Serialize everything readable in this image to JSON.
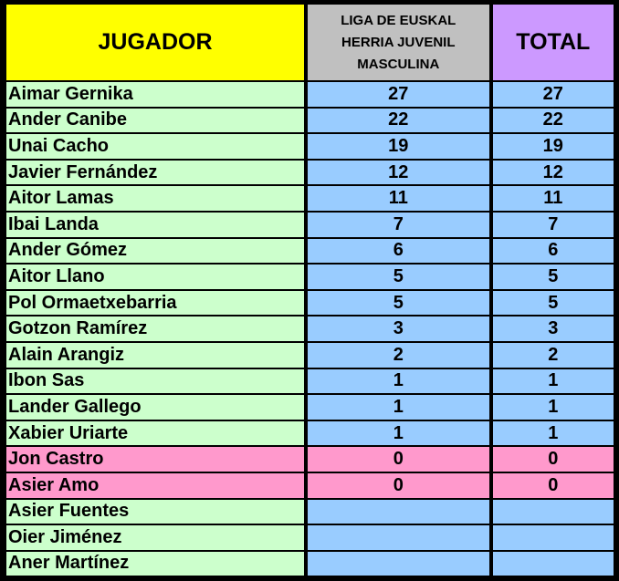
{
  "headers": {
    "player": "JUGADOR",
    "league_line1": "LIGA DE EUSKAL",
    "league_line2": "HERRIA JUVENIL",
    "league_line3": "MASCULINA",
    "total": "TOTAL"
  },
  "colors": {
    "header_player": "#ffff00",
    "header_league": "#c0c0c0",
    "header_total": "#cc99ff",
    "name_cell": "#ccffcc",
    "value_cell": "#99ccff",
    "zero_row": "#ff99cc"
  },
  "rows": [
    {
      "name": "Aimar Gernika",
      "league": "27",
      "total": "27"
    },
    {
      "name": "Ander Canibe",
      "league": "22",
      "total": "22"
    },
    {
      "name": "Unai Cacho",
      "league": "19",
      "total": "19"
    },
    {
      "name": "Javier Fernández",
      "league": "12",
      "total": "12"
    },
    {
      "name": "Aitor Lamas",
      "league": "11",
      "total": "11"
    },
    {
      "name": "Ibai Landa",
      "league": "7",
      "total": "7"
    },
    {
      "name": "Ander Gómez",
      "league": "6",
      "total": "6"
    },
    {
      "name": "Aitor Llano",
      "league": "5",
      "total": "5"
    },
    {
      "name": "Pol Ormaetxebarria",
      "league": "5",
      "total": "5"
    },
    {
      "name": "Gotzon Ramírez",
      "league": "3",
      "total": "3"
    },
    {
      "name": "Alain Arangiz",
      "league": "2",
      "total": "2"
    },
    {
      "name": "Ibon Sas",
      "league": "1",
      "total": "1"
    },
    {
      "name": "Lander Gallego",
      "league": "1",
      "total": "1"
    },
    {
      "name": "Xabier Uriarte",
      "league": "1",
      "total": "1"
    },
    {
      "name": "Jon Castro",
      "league": "0",
      "total": "0"
    },
    {
      "name": "Asier Amo",
      "league": "0",
      "total": "0"
    },
    {
      "name": "Asier Fuentes",
      "league": "",
      "total": ""
    },
    {
      "name": "Oier Jiménez",
      "league": "",
      "total": ""
    },
    {
      "name": "Aner Martínez",
      "league": "",
      "total": ""
    }
  ]
}
